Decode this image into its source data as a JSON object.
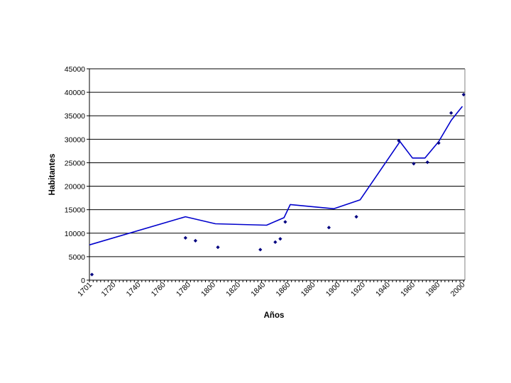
{
  "chart_data": {
    "type": "line",
    "xlabel": "Años",
    "ylabel": "Habitantes",
    "xlim": [
      1701,
      2002
    ],
    "ylim": [
      0,
      45000
    ],
    "x_ticks": [
      1701,
      1720,
      1740,
      1760,
      1780,
      1800,
      1820,
      1840,
      1860,
      1880,
      1900,
      1920,
      1940,
      1960,
      1980,
      2000
    ],
    "y_ticks": [
      0,
      5000,
      10000,
      15000,
      20000,
      25000,
      30000,
      35000,
      40000,
      45000
    ],
    "grid": "horizontal",
    "legend": "none",
    "colors": {
      "line": "#0000cc",
      "points": "#000080",
      "grid": "#000000"
    },
    "series": [
      {
        "type": "line",
        "x": [
          1701,
          1778,
          1802,
          1843,
          1857,
          1862,
          1897,
          1918,
          1950,
          1960,
          1970,
          1981,
          1991,
          1996,
          2000
        ],
        "y": [
          7500,
          13500,
          12000,
          11700,
          13300,
          16100,
          15200,
          17100,
          29500,
          26000,
          26000,
          29500,
          34000,
          35700,
          37000
        ]
      },
      {
        "type": "scatter",
        "x": [
          1703,
          1778,
          1786,
          1804,
          1838,
          1850,
          1854,
          1858,
          1893,
          1915,
          1949,
          1961,
          1972,
          1981,
          1991,
          2001
        ],
        "y": [
          1200,
          9000,
          8400,
          7000,
          6500,
          8100,
          8800,
          12400,
          11200,
          13500,
          29700,
          24800,
          25100,
          29200,
          35600,
          39500
        ]
      }
    ]
  }
}
